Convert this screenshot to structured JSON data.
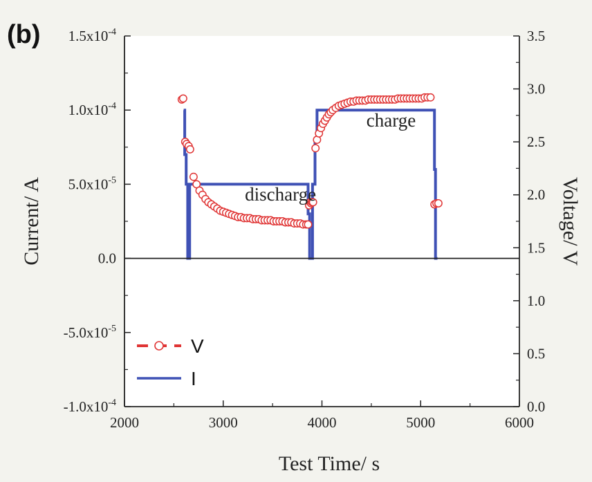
{
  "panel_label": "(b)",
  "chart_data": {
    "type": "line",
    "xlabel": "Test Time/ s",
    "ylabel_left": "Current/ A",
    "ylabel_right": "Voltage/ V",
    "xlim": [
      2000,
      6000
    ],
    "ylim_left": [
      -0.0001,
      0.00015
    ],
    "ylim_right": [
      0.0,
      3.5
    ],
    "x_ticks": [
      "2000",
      "3000",
      "4000",
      "5000",
      "6000"
    ],
    "x_tick_values": [
      2000,
      3000,
      4000,
      5000,
      6000
    ],
    "y_left_ticks": [
      {
        "v": 0.00015,
        "mant": "1.5x10",
        "exp": "-4"
      },
      {
        "v": 0.0001,
        "mant": "1.0x10",
        "exp": "-4"
      },
      {
        "v": 5e-05,
        "mant": "5.0x10",
        "exp": "-5"
      },
      {
        "v": 0.0,
        "mant": "0.0",
        "exp": ""
      },
      {
        "v": -5e-05,
        "mant": "-5.0x10",
        "exp": "-5"
      },
      {
        "v": -0.0001,
        "mant": "-1.0x10",
        "exp": "-4"
      }
    ],
    "y_right_ticks": [
      "0.0",
      "0.5",
      "1.0",
      "1.5",
      "2.0",
      "2.5",
      "3.0",
      "3.5"
    ],
    "y_right_tick_values": [
      0.0,
      0.5,
      1.0,
      1.5,
      2.0,
      2.5,
      3.0,
      3.5
    ],
    "annotations": [
      {
        "text": "discharge",
        "x": 3220,
        "y": 3.9e-05
      },
      {
        "text": "charge",
        "x": 4450,
        "y": 8.9e-05
      }
    ],
    "legend": {
      "position": "bottom-left",
      "entries": [
        "V",
        "I"
      ]
    },
    "series": [
      {
        "name": "I",
        "axis": "left",
        "style": "line",
        "color": "#3f51b5",
        "x": [
          2600,
          2610,
          2610,
          2625,
          2625,
          2640,
          2640,
          2660,
          2660,
          2690,
          2690,
          3860,
          3860,
          3875,
          3875,
          3905,
          3905,
          3930,
          3930,
          3950,
          3950,
          5140,
          5140,
          5150,
          5150,
          5170
        ],
        "y": [
          0.0001,
          0.0001,
          7e-05,
          7e-05,
          5e-05,
          5e-05,
          0.0,
          0.0,
          5e-05,
          5e-05,
          5e-05,
          5e-05,
          3e-05,
          3e-05,
          0.0,
          0.0,
          5e-05,
          5e-05,
          8e-05,
          8e-05,
          0.0001,
          0.0001,
          6e-05,
          6e-05,
          0.0,
          0.0
        ]
      },
      {
        "name": "V",
        "axis": "right",
        "style": "markers",
        "color": "#e03535",
        "x": [
          2580,
          2595,
          2615,
          2630,
          2650,
          2665,
          2700,
          2730,
          2760,
          2790,
          2820,
          2850,
          2880,
          2910,
          2940,
          2970,
          3000,
          3030,
          3060,
          3090,
          3120,
          3150,
          3180,
          3210,
          3240,
          3270,
          3300,
          3330,
          3360,
          3390,
          3420,
          3450,
          3480,
          3510,
          3540,
          3570,
          3600,
          3630,
          3660,
          3690,
          3720,
          3750,
          3780,
          3810,
          3840,
          3860,
          3870,
          3880,
          3890,
          3900,
          3910,
          3935,
          3950,
          3970,
          3990,
          4010,
          4030,
          4050,
          4070,
          4090,
          4110,
          4140,
          4170,
          4200,
          4230,
          4260,
          4290,
          4320,
          4350,
          4380,
          4410,
          4440,
          4470,
          4500,
          4530,
          4560,
          4590,
          4620,
          4650,
          4680,
          4710,
          4740,
          4770,
          4800,
          4830,
          4860,
          4890,
          4920,
          4950,
          4980,
          5010,
          5040,
          5070,
          5100,
          5140,
          5160,
          5180
        ],
        "y": [
          2.9,
          2.91,
          2.5,
          2.48,
          2.46,
          2.43,
          2.17,
          2.1,
          2.04,
          2.0,
          1.96,
          1.93,
          1.91,
          1.89,
          1.87,
          1.85,
          1.84,
          1.83,
          1.82,
          1.81,
          1.8,
          1.79,
          1.79,
          1.78,
          1.78,
          1.78,
          1.77,
          1.77,
          1.77,
          1.76,
          1.76,
          1.76,
          1.76,
          1.75,
          1.75,
          1.75,
          1.75,
          1.74,
          1.74,
          1.74,
          1.73,
          1.73,
          1.73,
          1.72,
          1.72,
          1.72,
          1.9,
          1.93,
          1.92,
          1.93,
          1.93,
          2.44,
          2.52,
          2.58,
          2.63,
          2.67,
          2.7,
          2.73,
          2.76,
          2.78,
          2.8,
          2.82,
          2.84,
          2.85,
          2.86,
          2.87,
          2.88,
          2.88,
          2.89,
          2.89,
          2.89,
          2.89,
          2.9,
          2.9,
          2.9,
          2.9,
          2.9,
          2.9,
          2.9,
          2.9,
          2.9,
          2.9,
          2.91,
          2.91,
          2.91,
          2.91,
          2.91,
          2.91,
          2.91,
          2.91,
          2.91,
          2.92,
          2.92,
          2.92,
          1.91,
          1.92,
          1.92
        ]
      }
    ]
  }
}
